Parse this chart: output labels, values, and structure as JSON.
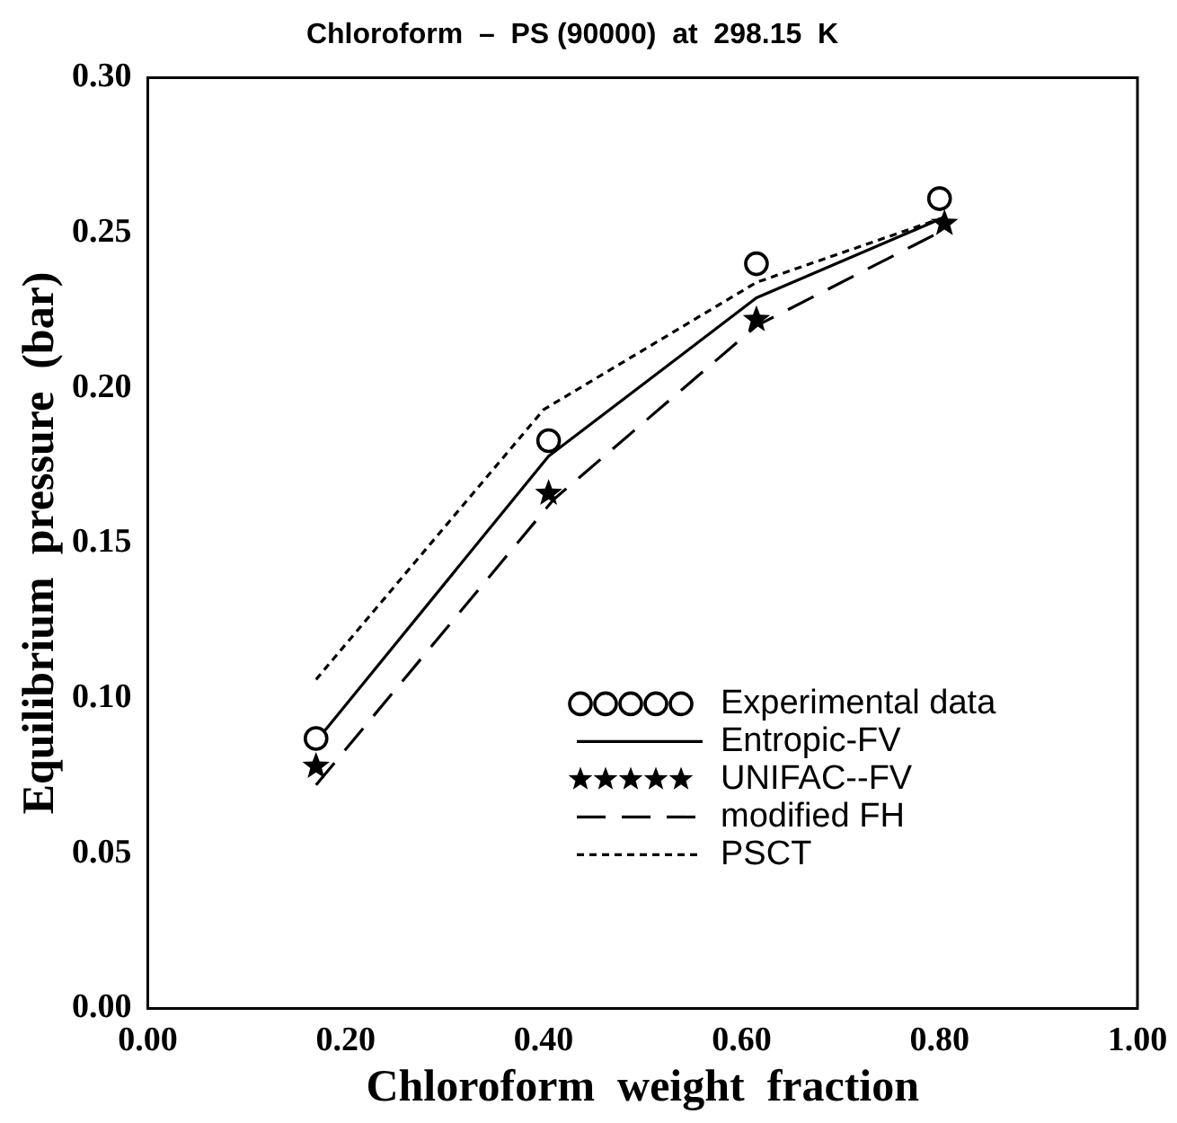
{
  "chart_data": {
    "type": "line",
    "title": "Chloroform  –  PS (90000)  at  298.15  K",
    "xlabel": "Chloroform  weight  fraction",
    "ylabel": "Equilibrium  pressure  (bar)",
    "xlim": [
      0,
      1
    ],
    "xticks": [
      {
        "value": 0,
        "label": "0.00"
      },
      {
        "value": 0.2,
        "label": "0.20"
      },
      {
        "value": 0.4,
        "label": "0.40"
      },
      {
        "value": 0.6,
        "label": "0.60"
      },
      {
        "value": 0.8,
        "label": "0.80"
      },
      {
        "value": 1,
        "label": "1.00"
      }
    ],
    "ylim": [
      0,
      0.3
    ],
    "yticks": [
      {
        "value": 0,
        "label": "0.00"
      },
      {
        "value": 0.05,
        "label": "0.05"
      },
      {
        "value": 0.1,
        "label": "0.10"
      },
      {
        "value": 0.15,
        "label": "0.15"
      },
      {
        "value": 0.2,
        "label": "0.20"
      },
      {
        "value": 0.25,
        "label": "0.25"
      },
      {
        "value": 0.3,
        "label": "0.30"
      }
    ],
    "grid": false,
    "legend": "bottom right",
    "series": [
      {
        "name": "Experimental data",
        "type": "scatter",
        "marker": "circle",
        "color": "#000000",
        "x": [
          0.17,
          0.405,
          0.615,
          0.8
        ],
        "values": [
          0.087,
          0.183,
          0.24,
          0.261
        ]
      },
      {
        "name": "Entropic-FV",
        "type": "line",
        "line_style": "solid",
        "marker": "none",
        "color": "#000000",
        "x": [
          0.175,
          0.405,
          0.615,
          0.805
        ],
        "values": [
          0.088,
          0.178,
          0.229,
          0.255
        ]
      },
      {
        "name": "UNIFAC--FV",
        "type": "scatter",
        "marker": "star",
        "color": "#000000",
        "x": [
          0.17,
          0.405,
          0.615,
          0.805
        ],
        "values": [
          0.078,
          0.166,
          0.222,
          0.253
        ]
      },
      {
        "name": "modified FH",
        "type": "line",
        "line_style": "dashed",
        "marker": "none",
        "color": "#000000",
        "x": [
          0.17,
          0.41,
          0.615,
          0.805
        ],
        "values": [
          0.072,
          0.164,
          0.22,
          0.251
        ]
      },
      {
        "name": "PSCT",
        "type": "line",
        "line_style": "dotted",
        "marker": "none",
        "color": "#000000",
        "x": [
          0.17,
          0.4,
          0.615,
          0.805
        ],
        "values": [
          0.106,
          0.193,
          0.234,
          0.255
        ]
      }
    ]
  }
}
